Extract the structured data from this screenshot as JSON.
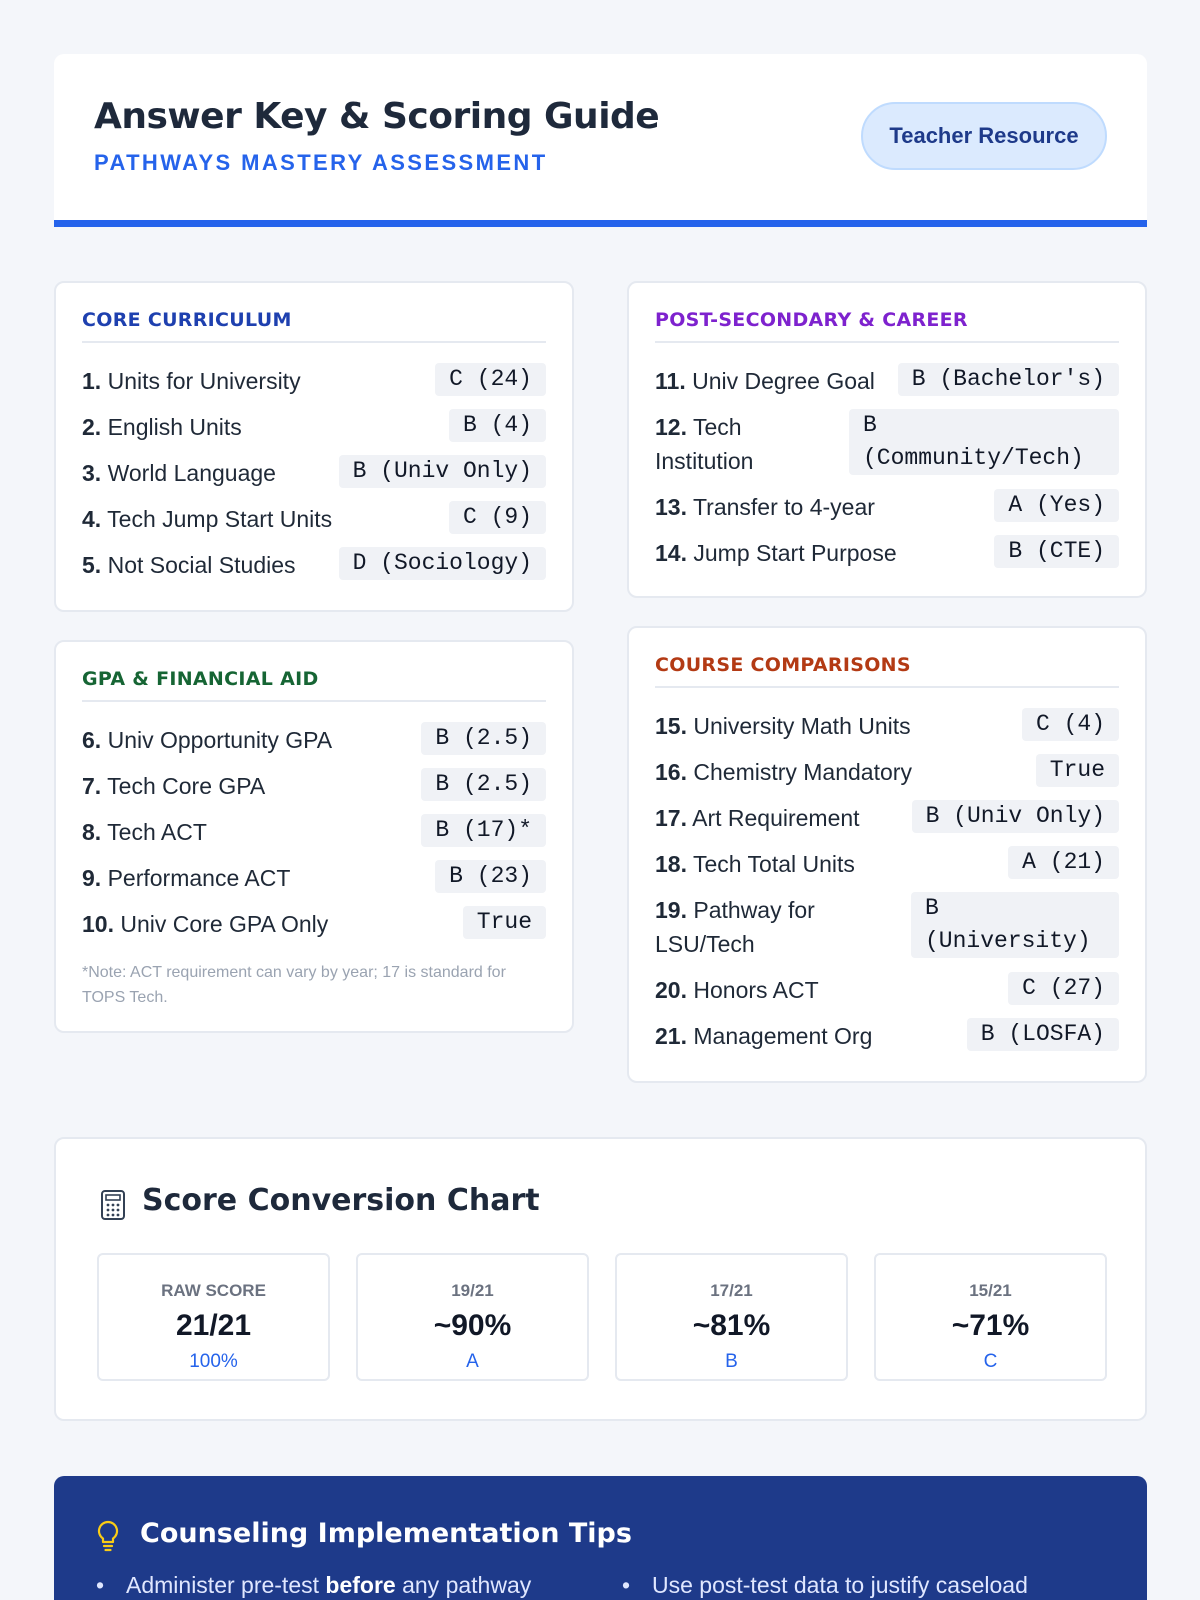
{
  "header": {
    "title": "Answer Key & Scoring Guide",
    "subtitle": "PATHWAYS MASTERY ASSESSMENT",
    "badge": "Teacher Resource"
  },
  "sections": {
    "core": {
      "title": "CORE CURRICULUM",
      "color": "#1e40af",
      "items": [
        {
          "num": "1.",
          "label": "Units for University",
          "answer": "C (24)"
        },
        {
          "num": "2.",
          "label": "English Units",
          "answer": "B (4)"
        },
        {
          "num": "3.",
          "label": "World Language",
          "answer": "B (Univ Only)"
        },
        {
          "num": "4.",
          "label": "Tech Jump Start Units",
          "answer": "C (9)"
        },
        {
          "num": "5.",
          "label": "Not Social Studies",
          "answer": "D (Sociology)"
        }
      ]
    },
    "gpa": {
      "title": "GPA & FINANCIAL AID",
      "color": "#166534",
      "items": [
        {
          "num": "6.",
          "label": "Univ Opportunity GPA",
          "answer": "B (2.5)"
        },
        {
          "num": "7.",
          "label": "Tech Core GPA",
          "answer": "B (2.5)"
        },
        {
          "num": "8.",
          "label": "Tech ACT",
          "answer": "B (17)*"
        },
        {
          "num": "9.",
          "label": "Performance ACT",
          "answer": "B (23)"
        },
        {
          "num": "10.",
          "label": "Univ Core GPA Only",
          "answer": "True"
        }
      ],
      "note": "*Note: ACT requirement can vary by year; 17 is standard for TOPS Tech."
    },
    "postsec": {
      "title": "POST-SECONDARY & CAREER",
      "color": "#7e22ce",
      "items": [
        {
          "num": "11.",
          "label": "Univ Degree Goal",
          "answer": "B (Bachelor's)"
        },
        {
          "num": "12.",
          "label": "Tech Institution",
          "answer": "B (Community/Tech)"
        },
        {
          "num": "13.",
          "label": "Transfer to 4-year",
          "answer": "A (Yes)"
        },
        {
          "num": "14.",
          "label": "Jump Start Purpose",
          "answer": "B (CTE)"
        }
      ]
    },
    "compare": {
      "title": "COURSE COMPARISONS",
      "color": "#b33a14",
      "items": [
        {
          "num": "15.",
          "label": "University Math Units",
          "answer": "C (4)"
        },
        {
          "num": "16.",
          "label": "Chemistry Mandatory",
          "answer": "True"
        },
        {
          "num": "17.",
          "label": "Art Requirement",
          "answer": "B (Univ Only)"
        },
        {
          "num": "18.",
          "label": "Tech Total Units",
          "answer": "A (21)"
        },
        {
          "num": "19.",
          "label": "Pathway for LSU/Tech",
          "answer": "B (University)"
        },
        {
          "num": "20.",
          "label": "Honors ACT",
          "answer": "C (27)"
        },
        {
          "num": "21.",
          "label": "Management Org",
          "answer": "B (LOSFA)"
        }
      ]
    }
  },
  "conversion": {
    "title": "Score Conversion Chart",
    "icon": "calculator-icon",
    "boxes": [
      {
        "label": "RAW SCORE",
        "value": "21/21",
        "grade": "100%"
      },
      {
        "label": "19/21",
        "value": "~90%",
        "grade": "A"
      },
      {
        "label": "17/21",
        "value": "~81%",
        "grade": "B"
      },
      {
        "label": "15/21",
        "value": "~71%",
        "grade": "C"
      }
    ]
  },
  "tips": {
    "title": "Counseling Implementation Tips",
    "icon": "lightbulb-icon",
    "items": [
      {
        "before": "Administer pre-test ",
        "bold": "before",
        "after": " any pathway"
      },
      {
        "before": "Use post-test data to justify caseload",
        "bold": "",
        "after": ""
      }
    ]
  }
}
